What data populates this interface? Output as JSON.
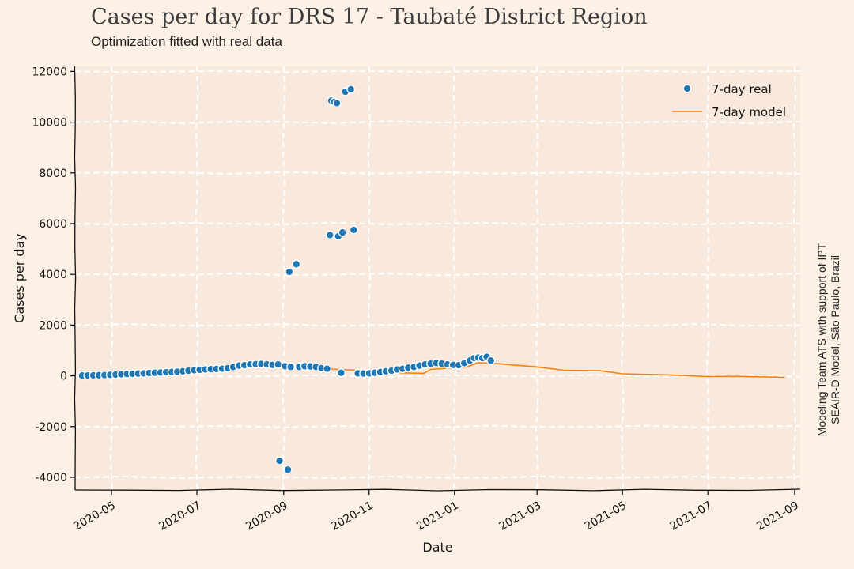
{
  "header": {
    "title": "Cases per day for DRS 17 - Taubaté District Region",
    "subtitle": "Optimization fitted with real data"
  },
  "credit": {
    "line1": "Modeling Team ATS with support of IPT",
    "line2": "SEAIR-D Model, São Paulo, Brazil"
  },
  "colors": {
    "background": "#fdf1e6",
    "plot_background": "#f9e8dc",
    "grid": "#ffffff",
    "real": "#1f77b4",
    "model": "#ff7f0e"
  },
  "chart_data": {
    "type": "scatter",
    "xlabel": "Date",
    "ylabel": "Cases per day",
    "xlim": [
      "2020-04-05",
      "2021-09-05"
    ],
    "ylim": [
      -4500,
      12200
    ],
    "x_ticks": [
      "2020-05-01",
      "2020-07-01",
      "2020-09-01",
      "2020-11-01",
      "2021-01-01",
      "2021-03-01",
      "2021-05-01",
      "2021-07-01",
      "2021-09-01"
    ],
    "x_tick_labels": [
      "2020-05",
      "2020-07",
      "2020-09",
      "2020-11",
      "2021-01",
      "2021-03",
      "2021-05",
      "2021-07",
      "2021-09"
    ],
    "y_ticks": [
      -4000,
      -2000,
      0,
      2000,
      4000,
      6000,
      8000,
      10000,
      12000
    ],
    "y_tick_labels": [
      "-4000",
      "-2000",
      "0",
      "2000",
      "4000",
      "6000",
      "8000",
      "10000",
      "12000"
    ],
    "grid": true,
    "legend_position": "top-right",
    "series": [
      {
        "name": "7-day real",
        "kind": "scatter",
        "points": [
          [
            "2020-04-10",
            10
          ],
          [
            "2020-04-14",
            15
          ],
          [
            "2020-04-18",
            20
          ],
          [
            "2020-04-22",
            25
          ],
          [
            "2020-04-26",
            30
          ],
          [
            "2020-04-30",
            40
          ],
          [
            "2020-05-04",
            50
          ],
          [
            "2020-05-08",
            60
          ],
          [
            "2020-05-12",
            70
          ],
          [
            "2020-05-16",
            80
          ],
          [
            "2020-05-20",
            90
          ],
          [
            "2020-05-24",
            100
          ],
          [
            "2020-05-28",
            110
          ],
          [
            "2020-06-01",
            120
          ],
          [
            "2020-06-05",
            130
          ],
          [
            "2020-06-09",
            140
          ],
          [
            "2020-06-13",
            150
          ],
          [
            "2020-06-17",
            160
          ],
          [
            "2020-06-21",
            180
          ],
          [
            "2020-06-25",
            200
          ],
          [
            "2020-06-29",
            220
          ],
          [
            "2020-07-03",
            240
          ],
          [
            "2020-07-07",
            250
          ],
          [
            "2020-07-11",
            260
          ],
          [
            "2020-07-15",
            270
          ],
          [
            "2020-07-19",
            280
          ],
          [
            "2020-07-23",
            300
          ],
          [
            "2020-07-27",
            350
          ],
          [
            "2020-07-31",
            400
          ],
          [
            "2020-08-04",
            420
          ],
          [
            "2020-08-08",
            450
          ],
          [
            "2020-08-12",
            460
          ],
          [
            "2020-08-16",
            470
          ],
          [
            "2020-08-20",
            450
          ],
          [
            "2020-08-24",
            430
          ],
          [
            "2020-08-28",
            450
          ],
          [
            "2020-08-29",
            -3350
          ],
          [
            "2020-09-02",
            380
          ],
          [
            "2020-09-04",
            -3700
          ],
          [
            "2020-09-05",
            4100
          ],
          [
            "2020-09-06",
            350
          ],
          [
            "2020-09-10",
            4400
          ],
          [
            "2020-09-12",
            350
          ],
          [
            "2020-09-16",
            380
          ],
          [
            "2020-09-20",
            370
          ],
          [
            "2020-09-24",
            350
          ],
          [
            "2020-09-28",
            300
          ],
          [
            "2020-10-02",
            280
          ],
          [
            "2020-10-04",
            5550
          ],
          [
            "2020-10-05",
            10850
          ],
          [
            "2020-10-07",
            10800
          ],
          [
            "2020-10-09",
            10750
          ],
          [
            "2020-10-10",
            5500
          ],
          [
            "2020-10-12",
            120
          ],
          [
            "2020-10-13",
            5650
          ],
          [
            "2020-10-15",
            11200
          ],
          [
            "2020-10-19",
            11300
          ],
          [
            "2020-10-21",
            5750
          ],
          [
            "2020-10-24",
            100
          ],
          [
            "2020-10-28",
            90
          ],
          [
            "2020-11-01",
            100
          ],
          [
            "2020-11-05",
            120
          ],
          [
            "2020-11-09",
            150
          ],
          [
            "2020-11-13",
            180
          ],
          [
            "2020-11-17",
            200
          ],
          [
            "2020-11-21",
            250
          ],
          [
            "2020-11-25",
            280
          ],
          [
            "2020-11-29",
            320
          ],
          [
            "2020-12-03",
            350
          ],
          [
            "2020-12-07",
            400
          ],
          [
            "2020-12-11",
            450
          ],
          [
            "2020-12-15",
            480
          ],
          [
            "2020-12-19",
            500
          ],
          [
            "2020-12-23",
            480
          ],
          [
            "2020-12-27",
            450
          ],
          [
            "2020-12-31",
            430
          ],
          [
            "2021-01-04",
            420
          ],
          [
            "2021-01-08",
            500
          ],
          [
            "2021-01-12",
            600
          ],
          [
            "2021-01-15",
            700
          ],
          [
            "2021-01-18",
            720
          ],
          [
            "2021-01-21",
            700
          ],
          [
            "2021-01-24",
            750
          ],
          [
            "2021-01-27",
            600
          ]
        ]
      },
      {
        "name": "7-day model",
        "kind": "line",
        "points": [
          [
            "2020-04-10",
            0
          ],
          [
            "2020-05-01",
            -50
          ],
          [
            "2020-05-15",
            50
          ],
          [
            "2020-06-01",
            120
          ],
          [
            "2020-06-20",
            150
          ],
          [
            "2020-07-10",
            180
          ],
          [
            "2020-07-20",
            200
          ],
          [
            "2020-07-28",
            480
          ],
          [
            "2020-08-10",
            420
          ],
          [
            "2020-09-01",
            350
          ],
          [
            "2020-09-20",
            320
          ],
          [
            "2020-10-10",
            250
          ],
          [
            "2020-11-01",
            200
          ],
          [
            "2020-11-20",
            120
          ],
          [
            "2020-12-10",
            100
          ],
          [
            "2020-12-15",
            250
          ],
          [
            "2021-01-01",
            320
          ],
          [
            "2021-01-10",
            350
          ],
          [
            "2021-01-18",
            520
          ],
          [
            "2021-02-01",
            480
          ],
          [
            "2021-03-01",
            350
          ],
          [
            "2021-03-20",
            220
          ],
          [
            "2021-04-15",
            200
          ],
          [
            "2021-05-01",
            80
          ],
          [
            "2021-06-01",
            40
          ],
          [
            "2021-07-01",
            -30
          ],
          [
            "2021-07-20",
            -20
          ],
          [
            "2021-08-10",
            -40
          ],
          [
            "2021-08-25",
            -60
          ]
        ]
      }
    ]
  }
}
